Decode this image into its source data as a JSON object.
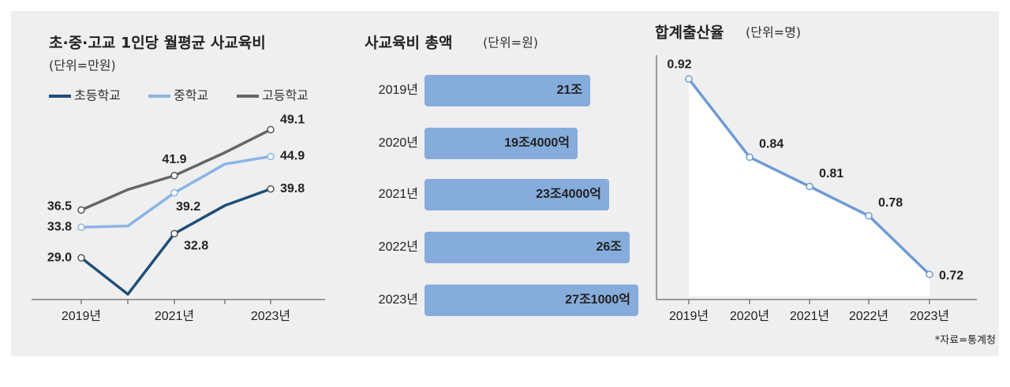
{
  "chart_data": [
    {
      "type": "line",
      "title": "초·중·고교 1인당 월평균 사교육비",
      "subtitle": "(단위=만원)",
      "categories": [
        "2019년",
        null,
        "2021년",
        null,
        "2023년"
      ],
      "ylim": [
        20,
        52
      ],
      "series": [
        {
          "name": "초등학교",
          "color": "#1f4e79",
          "values": [
            29.0,
            23.3,
            32.8,
            37.2,
            39.8
          ],
          "value_labels": [
            "29.0",
            null,
            "32.8",
            null,
            "39.8"
          ]
        },
        {
          "name": "중학교",
          "color": "#8ab4e6",
          "values": [
            33.8,
            34.0,
            39.2,
            43.7,
            44.9
          ],
          "value_labels": [
            "33.8",
            null,
            "39.2",
            null,
            "44.9"
          ]
        },
        {
          "name": "고등학교",
          "color": "#666666",
          "values": [
            36.5,
            39.7,
            41.9,
            45.5,
            49.1
          ],
          "value_labels": [
            "36.5",
            null,
            "41.9",
            null,
            "49.1"
          ]
        }
      ]
    },
    {
      "type": "hbar",
      "title": "사교육비 총액",
      "subtitle": "(단위=원)",
      "categories": [
        "2019년",
        "2020년",
        "2021년",
        "2022년",
        "2023년"
      ],
      "values": [
        210000,
        194000,
        234000,
        260000,
        271000
      ],
      "value_labels": [
        "21조",
        "19조4000억",
        "23조4000억",
        "26조",
        "27조1000억"
      ],
      "color": "#86acdc",
      "xlim": [
        0,
        300000
      ]
    },
    {
      "type": "line",
      "title": "합계출산율",
      "subtitle": "(단위=명)",
      "categories": [
        "2019년",
        "2020년",
        "2021년",
        "2022년",
        "2023년"
      ],
      "values": [
        0.92,
        0.84,
        0.81,
        0.78,
        0.72
      ],
      "color": "#6f9bd4",
      "ylim": [
        0.7,
        0.95
      ]
    }
  ],
  "source": "*자료=통계청"
}
